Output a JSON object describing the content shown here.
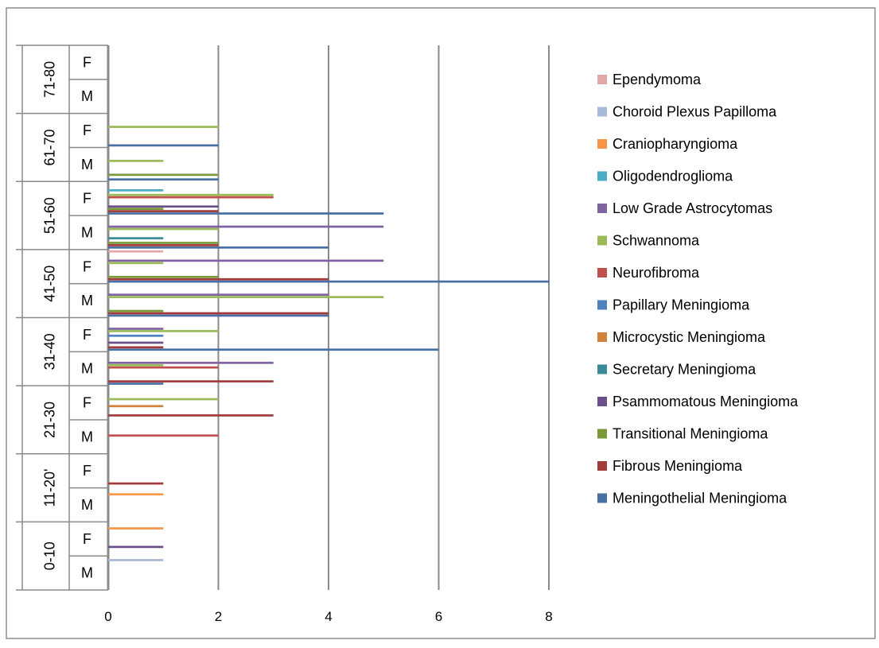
{
  "chart_data": {
    "type": "bar",
    "orientation": "horizontal",
    "title": "",
    "xlabel": "",
    "ylabel": "",
    "xlim": [
      0,
      8
    ],
    "x_ticks": [
      "0",
      "2",
      "4",
      "6",
      "8"
    ],
    "grid": "vertical major gridlines",
    "legend_position": "right",
    "groups": [
      "0-10",
      "11-20'",
      "21-30",
      "31-40",
      "41-50",
      "51-60",
      "61-70",
      "71-80"
    ],
    "sexes": [
      "M",
      "F"
    ],
    "categories": [
      "0-10 M",
      "0-10 F",
      "11-20' M",
      "11-20' F",
      "21-30 M",
      "21-30 F",
      "31-40 M",
      "31-40 F",
      "41-50 M",
      "41-50 F",
      "51-60 M",
      "51-60 F",
      "61-70 M",
      "61-70 F",
      "71-80 M",
      "71-80 F"
    ],
    "series": [
      {
        "name": "Meningothelial Meningioma",
        "color": "#4a6fa5",
        "values": [
          0,
          0,
          0,
          0,
          0,
          0,
          1,
          6,
          4,
          8,
          4,
          5,
          2,
          2,
          0,
          0
        ]
      },
      {
        "name": "Fibrous Meningioma",
        "color": "#a23b3b",
        "values": [
          0,
          0,
          0,
          1,
          0,
          3,
          3,
          1,
          4,
          4,
          2,
          2,
          0,
          0,
          0,
          0
        ]
      },
      {
        "name": "Transitional Meningioma",
        "color": "#7a9a3a",
        "values": [
          0,
          0,
          0,
          0,
          0,
          0,
          0,
          0,
          1,
          2,
          2,
          1,
          2,
          0,
          0,
          0
        ]
      },
      {
        "name": "Psammomatous Meningioma",
        "color": "#6b4f8a",
        "values": [
          0,
          1,
          0,
          0,
          0,
          0,
          0,
          1,
          0,
          0,
          0,
          2,
          0,
          0,
          0,
          0
        ]
      },
      {
        "name": "Secretary Meningioma",
        "color": "#3a8a9a",
        "values": [
          0,
          0,
          0,
          0,
          0,
          0,
          0,
          0,
          0,
          0,
          1,
          0,
          0,
          0,
          0,
          0
        ]
      },
      {
        "name": "Microcystic Meningioma",
        "color": "#d0823a",
        "values": [
          0,
          0,
          0,
          0,
          0,
          1,
          0,
          0,
          0,
          0,
          0,
          0,
          0,
          0,
          0,
          0
        ]
      },
      {
        "name": "Papillary Meningioma",
        "color": "#4f81bd",
        "values": [
          0,
          0,
          0,
          0,
          0,
          0,
          0,
          1,
          0,
          0,
          0,
          0,
          0,
          0,
          0,
          0
        ]
      },
      {
        "name": "Neurofibroma",
        "color": "#c0504d",
        "values": [
          0,
          0,
          0,
          0,
          2,
          0,
          2,
          0,
          0,
          0,
          0,
          3,
          0,
          0,
          0,
          0
        ]
      },
      {
        "name": "Schwannoma",
        "color": "#9bbb59",
        "values": [
          0,
          0,
          0,
          0,
          0,
          2,
          1,
          2,
          5,
          1,
          2,
          3,
          1,
          2,
          0,
          0
        ]
      },
      {
        "name": "Low Grade Astrocytomas",
        "color": "#8064a2",
        "values": [
          0,
          0,
          0,
          0,
          0,
          0,
          3,
          1,
          4,
          5,
          5,
          0,
          0,
          0,
          0,
          0
        ]
      },
      {
        "name": "Oligodendroglioma",
        "color": "#4bacc6",
        "values": [
          0,
          0,
          0,
          0,
          0,
          0,
          0,
          0,
          0,
          0,
          0,
          1,
          0,
          0,
          0,
          0
        ]
      },
      {
        "name": "Craniopharyngioma",
        "color": "#f79646",
        "values": [
          0,
          1,
          1,
          0,
          0,
          0,
          0,
          0,
          0,
          0,
          0,
          0,
          0,
          0,
          0,
          0
        ]
      },
      {
        "name": "Choroid Plexus Papilloma",
        "color": "#a9b9d9",
        "values": [
          1,
          0,
          0,
          0,
          0,
          0,
          0,
          0,
          0,
          0,
          0,
          0,
          0,
          0,
          0,
          0
        ]
      },
      {
        "name": "Ependymoma",
        "color": "#e2a8a8",
        "values": [
          0,
          0,
          0,
          0,
          0,
          0,
          0,
          0,
          0,
          1,
          0,
          0,
          0,
          0,
          0,
          0
        ]
      }
    ]
  }
}
